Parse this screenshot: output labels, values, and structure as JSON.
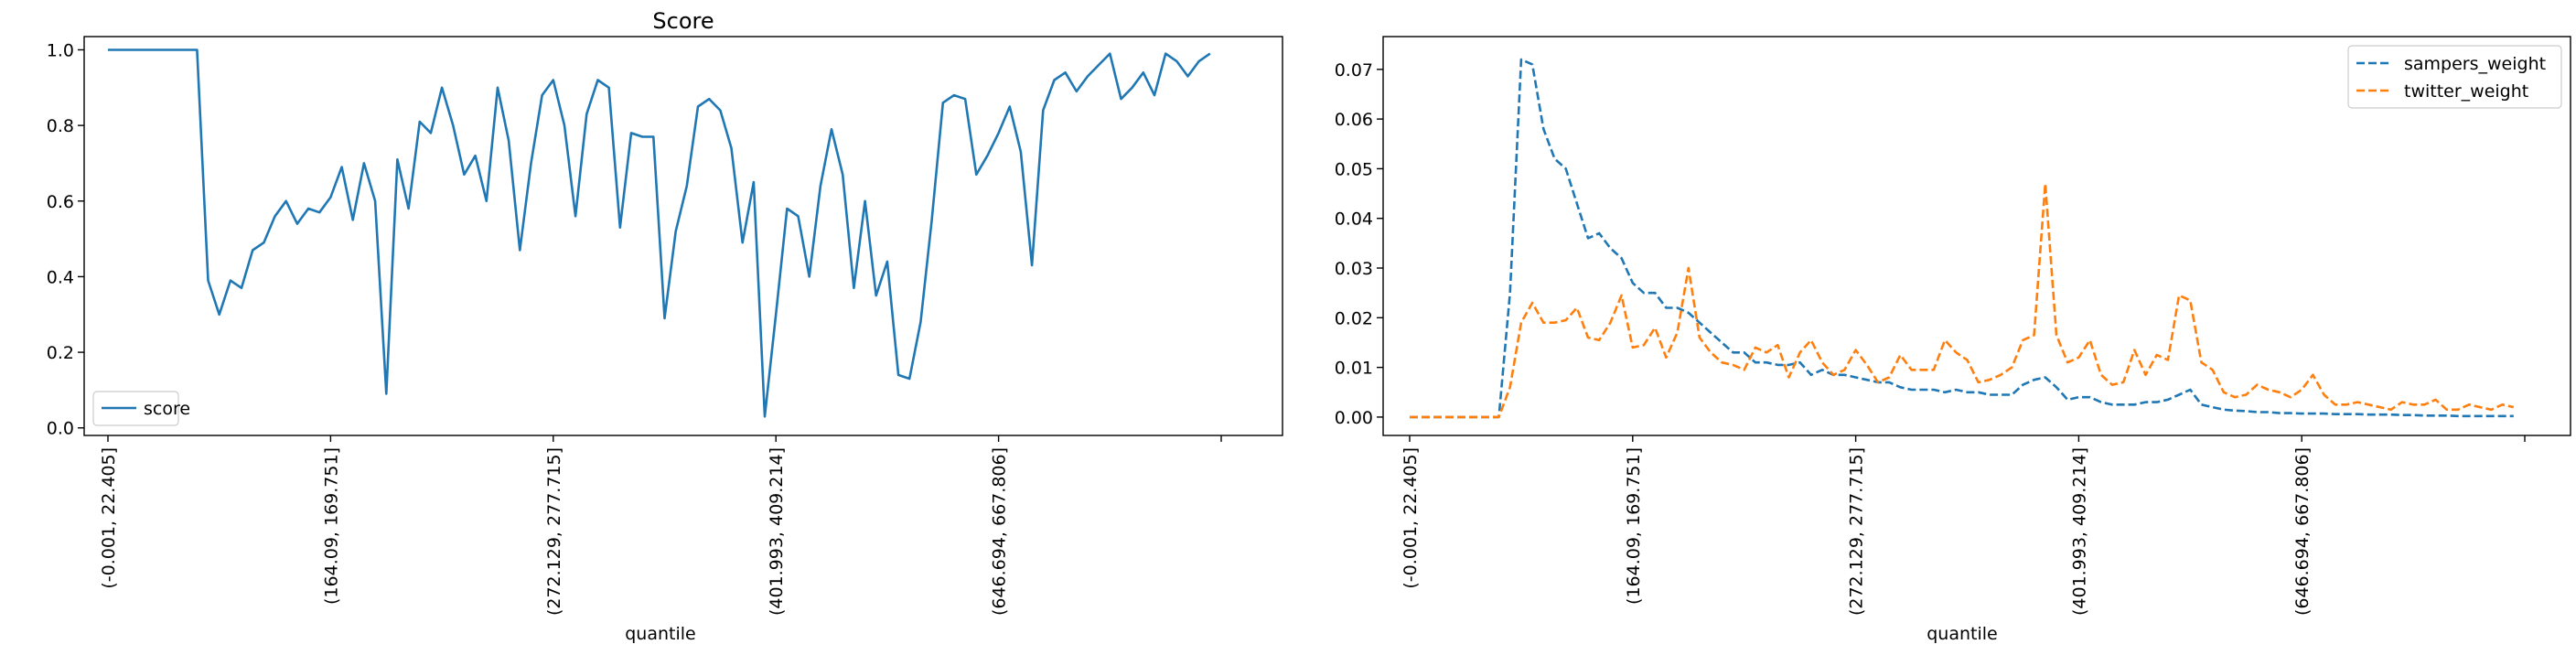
{
  "chart_data": [
    {
      "type": "line",
      "title": "Score",
      "xlabel": "quantile",
      "ylabel": "",
      "ylim": [
        -0.02,
        1.035
      ],
      "x_count": 100,
      "xticks": [
        {
          "index": 0,
          "label": "(-0.001, 22.405]"
        },
        {
          "index": 20,
          "label": "(164.09, 169.751]"
        },
        {
          "index": 40,
          "label": "(272.129, 277.715]"
        },
        {
          "index": 60,
          "label": "(401.993, 409.214]"
        },
        {
          "index": 80,
          "label": "(646.694, 667.806]"
        },
        {
          "index": 100,
          "label": ""
        }
      ],
      "yticks": [
        0.0,
        0.2,
        0.4,
        0.6,
        0.8,
        1.0
      ],
      "ytick_labels": [
        "0.0",
        "0.2",
        "0.4",
        "0.6",
        "0.8",
        "1.0"
      ],
      "legend": {
        "position": "lower-left"
      },
      "grid": false,
      "series": [
        {
          "name": "score",
          "color": "#1f77b4",
          "dash": "solid",
          "values": [
            1.0,
            1.0,
            1.0,
            1.0,
            1.0,
            1.0,
            1.0,
            1.0,
            1.0,
            0.39,
            0.3,
            0.39,
            0.37,
            0.47,
            0.49,
            0.56,
            0.6,
            0.54,
            0.58,
            0.57,
            0.61,
            0.69,
            0.55,
            0.7,
            0.6,
            0.09,
            0.71,
            0.58,
            0.81,
            0.78,
            0.9,
            0.8,
            0.67,
            0.72,
            0.6,
            0.9,
            0.76,
            0.47,
            0.7,
            0.88,
            0.92,
            0.8,
            0.56,
            0.83,
            0.92,
            0.9,
            0.53,
            0.78,
            0.77,
            0.77,
            0.29,
            0.52,
            0.64,
            0.85,
            0.87,
            0.84,
            0.74,
            0.49,
            0.65,
            0.03,
            0.3,
            0.58,
            0.56,
            0.4,
            0.64,
            0.79,
            0.67,
            0.37,
            0.6,
            0.35,
            0.44,
            0.14,
            0.13,
            0.28,
            0.55,
            0.86,
            0.88,
            0.87,
            0.67,
            0.72,
            0.78,
            0.85,
            0.73,
            0.43,
            0.84,
            0.92,
            0.94,
            0.89,
            0.93,
            0.96,
            0.99,
            0.87,
            0.9,
            0.94,
            0.88,
            0.99,
            0.97,
            0.93,
            0.97,
            0.99
          ]
        }
      ]
    },
    {
      "type": "line",
      "title": "",
      "xlabel": "quantile",
      "ylabel": "",
      "ylim": [
        -0.0037,
        0.0766
      ],
      "x_count": 100,
      "xticks": [
        {
          "index": 0,
          "label": "(-0.001, 22.405]"
        },
        {
          "index": 20,
          "label": "(164.09, 169.751]"
        },
        {
          "index": 40,
          "label": "(272.129, 277.715]"
        },
        {
          "index": 60,
          "label": "(401.993, 409.214]"
        },
        {
          "index": 80,
          "label": "(646.694, 667.806]"
        },
        {
          "index": 100,
          "label": ""
        }
      ],
      "yticks": [
        0.0,
        0.01,
        0.02,
        0.03,
        0.04,
        0.05,
        0.06,
        0.07
      ],
      "ytick_labels": [
        "0.00",
        "0.01",
        "0.02",
        "0.03",
        "0.04",
        "0.05",
        "0.06",
        "0.07"
      ],
      "legend": {
        "position": "upper-right"
      },
      "grid": false,
      "series": [
        {
          "name": "sampers_weight",
          "color": "#1f77b4",
          "dash": "dashed",
          "values": [
            0.0,
            0.0,
            0.0,
            0.0,
            0.0,
            0.0,
            0.0,
            0.0,
            0.0,
            0.025,
            0.072,
            0.071,
            0.058,
            0.052,
            0.05,
            0.043,
            0.036,
            0.037,
            0.034,
            0.032,
            0.027,
            0.025,
            0.025,
            0.022,
            0.022,
            0.021,
            0.019,
            0.017,
            0.015,
            0.013,
            0.013,
            0.011,
            0.011,
            0.0105,
            0.0105,
            0.011,
            0.0085,
            0.0095,
            0.0085,
            0.0085,
            0.008,
            0.0075,
            0.007,
            0.007,
            0.006,
            0.0055,
            0.0055,
            0.0055,
            0.005,
            0.0055,
            0.005,
            0.005,
            0.0045,
            0.0045,
            0.0045,
            0.0065,
            0.0075,
            0.008,
            0.006,
            0.0035,
            0.004,
            0.004,
            0.003,
            0.0025,
            0.0025,
            0.0025,
            0.003,
            0.003,
            0.0035,
            0.0045,
            0.0055,
            0.0025,
            0.002,
            0.0015,
            0.0013,
            0.0012,
            0.001,
            0.001,
            0.0008,
            0.0008,
            0.0007,
            0.0007,
            0.0007,
            0.0006,
            0.0006,
            0.0006,
            0.0005,
            0.0005,
            0.0005,
            0.0004,
            0.0004,
            0.0003,
            0.0003,
            0.0003,
            0.0002,
            0.0002,
            0.0002,
            0.0002,
            0.0002,
            0.0002
          ]
        },
        {
          "name": "twitter_weight",
          "color": "#ff7f0e",
          "dash": "dashed",
          "values": [
            0.0,
            0.0,
            0.0,
            0.0,
            0.0,
            0.0,
            0.0,
            0.0,
            0.0,
            0.006,
            0.019,
            0.023,
            0.019,
            0.019,
            0.0195,
            0.022,
            0.016,
            0.0155,
            0.019,
            0.0245,
            0.014,
            0.0145,
            0.018,
            0.012,
            0.017,
            0.03,
            0.016,
            0.013,
            0.011,
            0.0105,
            0.0095,
            0.014,
            0.013,
            0.0145,
            0.008,
            0.013,
            0.0155,
            0.011,
            0.0085,
            0.0095,
            0.0135,
            0.0105,
            0.007,
            0.008,
            0.0125,
            0.0095,
            0.0095,
            0.0095,
            0.0155,
            0.013,
            0.0115,
            0.007,
            0.0075,
            0.0085,
            0.01,
            0.0155,
            0.0165,
            0.047,
            0.0165,
            0.011,
            0.012,
            0.0155,
            0.0085,
            0.0065,
            0.007,
            0.0135,
            0.0085,
            0.0125,
            0.0115,
            0.0245,
            0.0235,
            0.011,
            0.0095,
            0.005,
            0.004,
            0.0045,
            0.0065,
            0.0055,
            0.005,
            0.004,
            0.0055,
            0.0085,
            0.0045,
            0.0025,
            0.0025,
            0.003,
            0.0025,
            0.002,
            0.0015,
            0.003,
            0.0025,
            0.0025,
            0.0035,
            0.0015,
            0.0015,
            0.0025,
            0.002,
            0.0015,
            0.0025,
            0.002
          ]
        }
      ]
    }
  ]
}
